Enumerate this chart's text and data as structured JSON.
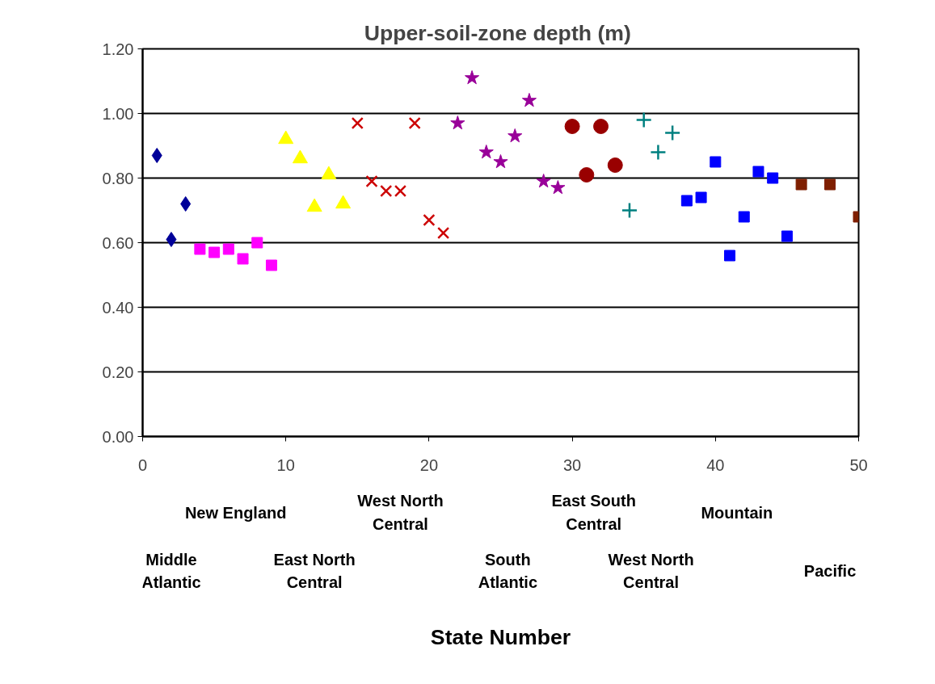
{
  "chart_data": {
    "type": "scatter",
    "title": "Upper-soil-zone  depth (m)",
    "xlim": [
      0,
      50
    ],
    "xticks": [
      0,
      10,
      20,
      30,
      40,
      50
    ],
    "ylim": [
      0,
      1.2
    ],
    "yticks": [
      {
        "value": 0,
        "label": "0.00"
      },
      {
        "value": 0.2,
        "label": "0.20"
      },
      {
        "value": 0.4,
        "label": "0.40"
      },
      {
        "value": 0.6,
        "label": "0.60"
      },
      {
        "value": 0.8,
        "label": "0.80"
      },
      {
        "value": 1.0,
        "label": "1.00"
      },
      {
        "value": 1.2,
        "label": "1.20"
      }
    ],
    "grid": "y",
    "annotations": [
      "Middle Atlantic",
      "New England",
      "East North Central",
      "West North Central",
      "South Atlantic",
      "East South Central",
      "West North Central",
      "Mountain",
      "Pacific",
      "State Number"
    ],
    "series": [
      {
        "color": "#000099",
        "marker": "diamond",
        "x": [
          1,
          2,
          3
        ],
        "values": [
          0.87,
          0.61,
          0.72
        ]
      },
      {
        "color": "#ff00ff",
        "marker": "square",
        "x": [
          4,
          5,
          6,
          7,
          8,
          9
        ],
        "values": [
          0.58,
          0.57,
          0.58,
          0.55,
          0.6,
          0.53
        ]
      },
      {
        "color": "#ffff00",
        "marker": "triangle",
        "x": [
          10,
          11,
          12,
          13,
          14
        ],
        "values": [
          0.92,
          0.86,
          0.71,
          0.81,
          0.72
        ]
      },
      {
        "color": "#cc0000",
        "marker": "x",
        "x": [
          15,
          16,
          17,
          18,
          19,
          20,
          21
        ],
        "values": [
          0.97,
          0.79,
          0.76,
          0.76,
          0.97,
          0.67,
          0.63
        ]
      },
      {
        "color": "#990099",
        "marker": "star",
        "x": [
          22,
          23,
          24,
          25,
          26,
          27,
          28,
          29
        ],
        "values": [
          0.97,
          1.11,
          0.88,
          0.85,
          0.93,
          1.04,
          0.79,
          0.77
        ]
      },
      {
        "color": "#990000",
        "marker": "circle",
        "x": [
          30,
          31,
          32,
          33
        ],
        "values": [
          0.96,
          0.81,
          0.96,
          0.84
        ]
      },
      {
        "color": "#008080",
        "marker": "cross",
        "x": [
          34,
          35,
          36,
          37
        ],
        "values": [
          0.7,
          0.98,
          0.88,
          0.94
        ]
      },
      {
        "color": "#0000ff",
        "marker": "square",
        "x": [
          38,
          39,
          40,
          41,
          42,
          43,
          44,
          45
        ],
        "values": [
          0.73,
          0.74,
          0.85,
          0.56,
          0.68,
          0.82,
          0.8,
          0.62
        ]
      },
      {
        "color": "#7f1f00",
        "marker": "square",
        "x": [
          46,
          48,
          50
        ],
        "values": [
          0.78,
          0.78,
          0.68
        ]
      }
    ]
  }
}
